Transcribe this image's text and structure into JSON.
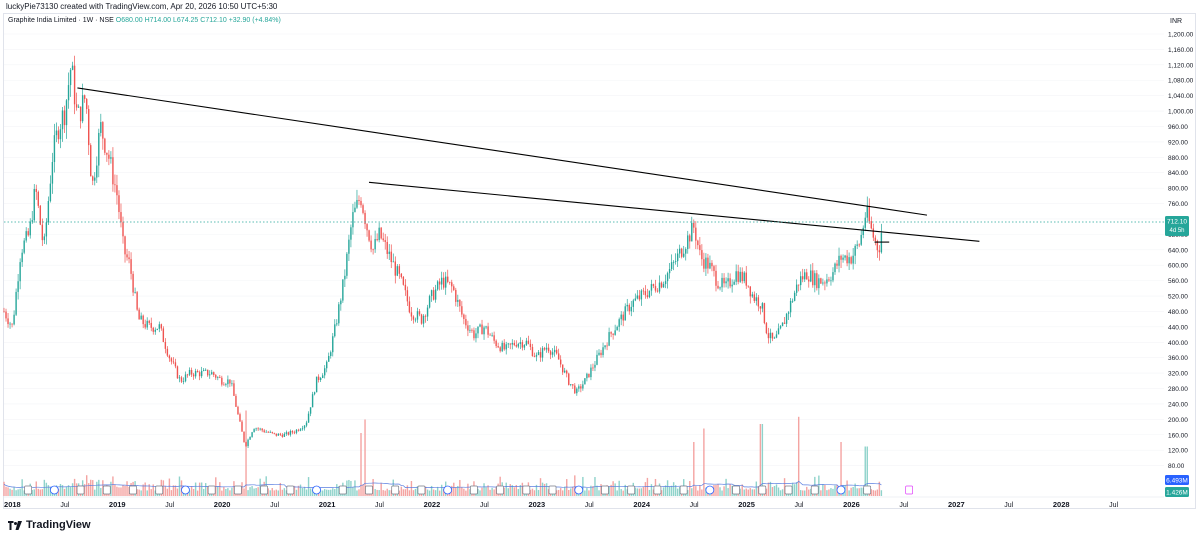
{
  "header": {
    "credit": "luckyPie73130 created with TradingView.com, Apr 20, 2026 10:50 UTC+5:30",
    "symbol": "Graphite India Limited · 1W · NSE",
    "open": "O680.00",
    "high": "H714.00",
    "low": "L674.25",
    "close": "C712.10",
    "change": "+32.90 (+4.84%)",
    "currency": "INR"
  },
  "price_tag": {
    "value": "712.10",
    "countdown": "4d 5h"
  },
  "volume_tags": {
    "volume": "6.493M",
    "volume_ma": "1.426M"
  },
  "brand": "TradingView",
  "colors": {
    "up": "#26a69a",
    "down": "#ef5350",
    "volume_up": "#8fd3cb",
    "volume_down": "#f4a4a2",
    "volume_ma": "#5b7fe0",
    "trendline": "#000000",
    "price_line": "#26a69a"
  },
  "chart_data": {
    "type": "candlestick",
    "title": "Graphite India Limited · 1W · NSE",
    "y_axis": {
      "min": 40,
      "max": 1200,
      "ticks": [
        "1,200.00",
        "1,160.00",
        "1,120.00",
        "1,080.00",
        "1,040.00",
        "1,000.00",
        "960.00",
        "920.00",
        "880.00",
        "840.00",
        "800.00",
        "760.00",
        "720.00",
        "680.00",
        "640.00",
        "600.00",
        "560.00",
        "520.00",
        "480.00",
        "440.00",
        "400.00",
        "360.00",
        "320.00",
        "280.00",
        "240.00",
        "200.00",
        "160.00",
        "120.00",
        "80.00"
      ]
    },
    "x_axis": {
      "ticks": [
        {
          "label": "2018",
          "x": 2018.0,
          "bold": true
        },
        {
          "label": "Jul",
          "x": 2018.5
        },
        {
          "label": "2019",
          "x": 2019.0,
          "bold": true
        },
        {
          "label": "Jul",
          "x": 2019.5
        },
        {
          "label": "2020",
          "x": 2020.0,
          "bold": true
        },
        {
          "label": "Jul",
          "x": 2020.5
        },
        {
          "label": "2021",
          "x": 2021.0,
          "bold": true
        },
        {
          "label": "Jul",
          "x": 2021.5
        },
        {
          "label": "2022",
          "x": 2022.0,
          "bold": true
        },
        {
          "label": "Jul",
          "x": 2022.5
        },
        {
          "label": "2023",
          "x": 2023.0,
          "bold": true
        },
        {
          "label": "Jul",
          "x": 2023.5
        },
        {
          "label": "2024",
          "x": 2024.0,
          "bold": true
        },
        {
          "label": "Jul",
          "x": 2024.5
        },
        {
          "label": "2025",
          "x": 2025.0,
          "bold": true
        },
        {
          "label": "Jul",
          "x": 2025.5
        },
        {
          "label": "2026",
          "x": 2026.0,
          "bold": true
        },
        {
          "label": "Jul",
          "x": 2026.5
        },
        {
          "label": "2027",
          "x": 2027.0,
          "bold": true
        },
        {
          "label": "Jul",
          "x": 2027.5
        },
        {
          "label": "2028",
          "x": 2028.0,
          "bold": true
        },
        {
          "label": "Jul",
          "x": 2028.5
        }
      ]
    },
    "price_path": [
      [
        2017.92,
        480
      ],
      [
        2018.0,
        440
      ],
      [
        2018.08,
        640
      ],
      [
        2018.16,
        680
      ],
      [
        2018.22,
        800
      ],
      [
        2018.3,
        640
      ],
      [
        2018.38,
        880
      ],
      [
        2018.44,
        960
      ],
      [
        2018.5,
        1000
      ],
      [
        2018.56,
        1120
      ],
      [
        2018.62,
        980
      ],
      [
        2018.7,
        1040
      ],
      [
        2018.76,
        800
      ],
      [
        2018.84,
        960
      ],
      [
        2018.92,
        880
      ],
      [
        2019.0,
        780
      ],
      [
        2019.06,
        640
      ],
      [
        2019.12,
        600
      ],
      [
        2019.2,
        460
      ],
      [
        2019.3,
        440
      ],
      [
        2019.4,
        440
      ],
      [
        2019.5,
        360
      ],
      [
        2019.6,
        300
      ],
      [
        2019.7,
        320
      ],
      [
        2019.8,
        320
      ],
      [
        2019.9,
        320
      ],
      [
        2020.0,
        300
      ],
      [
        2020.08,
        300
      ],
      [
        2020.16,
        200
      ],
      [
        2020.22,
        130
      ],
      [
        2020.3,
        180
      ],
      [
        2020.4,
        170
      ],
      [
        2020.5,
        160
      ],
      [
        2020.6,
        160
      ],
      [
        2020.7,
        170
      ],
      [
        2020.8,
        190
      ],
      [
        2020.9,
        300
      ],
      [
        2021.0,
        340
      ],
      [
        2021.08,
        440
      ],
      [
        2021.16,
        560
      ],
      [
        2021.24,
        720
      ],
      [
        2021.32,
        780
      ],
      [
        2021.38,
        700
      ],
      [
        2021.44,
        640
      ],
      [
        2021.5,
        680
      ],
      [
        2021.6,
        620
      ],
      [
        2021.7,
        560
      ],
      [
        2021.8,
        480
      ],
      [
        2021.9,
        460
      ],
      [
        2022.0,
        520
      ],
      [
        2022.1,
        560
      ],
      [
        2022.2,
        540
      ],
      [
        2022.3,
        460
      ],
      [
        2022.4,
        420
      ],
      [
        2022.5,
        440
      ],
      [
        2022.6,
        400
      ],
      [
        2022.7,
        380
      ],
      [
        2022.8,
        400
      ],
      [
        2022.9,
        400
      ],
      [
        2023.0,
        360
      ],
      [
        2023.1,
        390
      ],
      [
        2023.2,
        360
      ],
      [
        2023.3,
        300
      ],
      [
        2023.38,
        270
      ],
      [
        2023.46,
        300
      ],
      [
        2023.54,
        340
      ],
      [
        2023.62,
        380
      ],
      [
        2023.7,
        420
      ],
      [
        2023.8,
        460
      ],
      [
        2023.9,
        500
      ],
      [
        2024.0,
        520
      ],
      [
        2024.1,
        540
      ],
      [
        2024.2,
        560
      ],
      [
        2024.3,
        600
      ],
      [
        2024.38,
        640
      ],
      [
        2024.46,
        680
      ],
      [
        2024.5,
        700
      ],
      [
        2024.56,
        620
      ],
      [
        2024.64,
        600
      ],
      [
        2024.72,
        560
      ],
      [
        2024.8,
        540
      ],
      [
        2024.9,
        580
      ],
      [
        2025.0,
        560
      ],
      [
        2025.06,
        520
      ],
      [
        2025.14,
        500
      ],
      [
        2025.2,
        420
      ],
      [
        2025.26,
        400
      ],
      [
        2025.34,
        440
      ],
      [
        2025.42,
        500
      ],
      [
        2025.5,
        560
      ],
      [
        2025.58,
        580
      ],
      [
        2025.66,
        560
      ],
      [
        2025.74,
        560
      ],
      [
        2025.82,
        580
      ],
      [
        2025.9,
        620
      ],
      [
        2026.0,
        620
      ],
      [
        2026.08,
        660
      ],
      [
        2026.14,
        740
      ],
      [
        2026.2,
        680
      ],
      [
        2026.26,
        640
      ],
      [
        2026.3,
        712.1
      ]
    ],
    "volume_spikes": [
      {
        "x": 2020.22,
        "v": 0.95
      },
      {
        "x": 2021.32,
        "v": 0.7
      },
      {
        "x": 2021.36,
        "v": 0.85
      },
      {
        "x": 2024.5,
        "v": 0.6
      },
      {
        "x": 2024.6,
        "v": 0.75
      },
      {
        "x": 2025.14,
        "v": 0.8
      },
      {
        "x": 2025.5,
        "v": 0.88
      },
      {
        "x": 2025.9,
        "v": 0.6
      },
      {
        "x": 2026.14,
        "v": 0.55
      }
    ],
    "trendlines": [
      {
        "from": [
          2018.62,
          1060
        ],
        "to": [
          2026.72,
          730
        ]
      },
      {
        "from": [
          2021.4,
          815
        ],
        "to": [
          2027.22,
          662
        ]
      }
    ],
    "horizontal_marker": {
      "from": 2026.22,
      "to": 2026.36,
      "y": 660
    },
    "last_price": 712.1
  }
}
